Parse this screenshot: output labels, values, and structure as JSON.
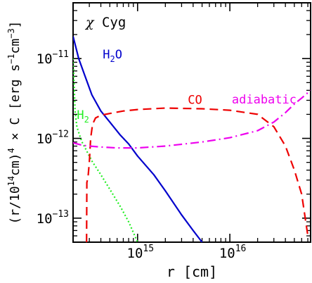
{
  "chart_data": {
    "type": "line",
    "title": "χ Cyg",
    "xlabel": "r [cm]",
    "ylabel": {
      "prefix": "(r/10",
      "exp1": "14",
      "mid1": "cm)",
      "exp2": "4",
      "mid2": " × C [erg s",
      "exp3": "−1",
      "mid3": "cm",
      "exp4": "−3",
      "suffix": "]"
    },
    "x_scale": "log",
    "y_scale": "log",
    "xlim": [
      200000000000000.0,
      7.5e+16
    ],
    "ylim": [
      5e-14,
      5e-11
    ],
    "x_ticks": [
      {
        "value": 1000000000000000.0,
        "base": "10",
        "exp": "15"
      },
      {
        "value": 1e+16,
        "base": "10",
        "exp": "16"
      }
    ],
    "y_ticks": [
      {
        "value": 1e-13,
        "base": "10",
        "exp": "−13"
      },
      {
        "value": 1e-12,
        "base": "10",
        "exp": "−12"
      },
      {
        "value": 1e-11,
        "base": "10",
        "exp": "−11"
      }
    ],
    "series": [
      {
        "name": "H2O",
        "label_base": "H",
        "label_sub": "2",
        "label_tail": "O",
        "color": "#0000cc",
        "dash": "solid",
        "label_x": 420000000000000.0,
        "label_y": 1e-11,
        "x": [
          200000000000000.0,
          230000000000000.0,
          270000000000000.0,
          320000000000000.0,
          400000000000000.0,
          500000000000000.0,
          650000000000000.0,
          800000000000000.0,
          1000000000000000.0,
          1500000000000000.0,
          2000000000000000.0,
          3000000000000000.0,
          4000000000000000.0,
          5000000000000000.0
        ],
        "y": [
          1.9e-11,
          1e-11,
          6e-12,
          3.5e-12,
          2.2e-12,
          1.6e-12,
          1.1e-12,
          8.5e-13,
          6e-13,
          3.5e-13,
          2.2e-13,
          1.1e-13,
          7e-14,
          5e-14
        ]
      },
      {
        "name": "H2",
        "label_base": "H",
        "label_sub": "2",
        "label_tail": "",
        "color": "#22ee22",
        "dash": "dotted",
        "label_x": 220000000000000.0,
        "label_y": 1.75e-12,
        "x": [
          200000000000000.0,
          205000000000000.0,
          210000000000000.0,
          220000000000000.0,
          235000000000000.0,
          250000000000000.0,
          280000000000000.0,
          320000000000000.0,
          400000000000000.0,
          500000000000000.0,
          650000000000000.0,
          800000000000000.0,
          1000000000000000.0
        ],
        "y": [
          1e-11,
          5e-12,
          2.2e-12,
          1.4e-12,
          1.1e-12,
          9e-13,
          7e-13,
          5.2e-13,
          3.5e-13,
          2.3e-13,
          1.4e-13,
          9e-14,
          5e-14
        ]
      },
      {
        "name": "CO",
        "label_base": "CO",
        "label_sub": "",
        "label_tail": "",
        "color": "#ee0000",
        "dash": "dashed",
        "label_x": 3500000000000000.0,
        "label_y": 2.7e-12,
        "x": [
          280000000000000.0,
          282000000000000.0,
          290000000000000.0,
          300000000000000.0,
          310000000000000.0,
          325000000000000.0,
          350000000000000.0,
          400000000000000.0,
          500000000000000.0,
          700000000000000.0,
          1000000000000000.0,
          2000000000000000.0,
          5000000000000000.0,
          1e+16,
          2e+16,
          3e+16,
          4e+16,
          5e+16,
          6e+16,
          7e+16
        ],
        "y": [
          5e-14,
          2.8e-13,
          3.2e-13,
          5e-13,
          1e-12,
          1.5e-12,
          1.8e-12,
          1.95e-12,
          2.05e-12,
          2.2e-12,
          2.3e-12,
          2.4e-12,
          2.35e-12,
          2.25e-12,
          2e-12,
          1.4e-12,
          8e-13,
          4e-13,
          2e-13,
          6e-14
        ]
      },
      {
        "name": "adiabatic",
        "label_base": "adiabatic",
        "label_sub": "",
        "label_tail": "",
        "color": "#ee00ee",
        "dash": "dashdot",
        "label_x": 1.05e+16,
        "label_y": 2.75e-12,
        "x": [
          200000000000000.0,
          250000000000000.0,
          300000000000000.0,
          400000000000000.0,
          600000000000000.0,
          1000000000000000.0,
          2000000000000000.0,
          5000000000000000.0,
          1e+16,
          2e+16,
          3e+16,
          4e+16,
          5e+16,
          6e+16,
          7.5e+16
        ],
        "y": [
          8.8e-13,
          8.2e-13,
          8e-13,
          7.8e-13,
          7.6e-13,
          7.6e-13,
          8e-13,
          9e-13,
          1.02e-12,
          1.25e-12,
          1.6e-12,
          2.1e-12,
          2.7e-12,
          3.2e-12,
          4e-12
        ]
      }
    ]
  }
}
